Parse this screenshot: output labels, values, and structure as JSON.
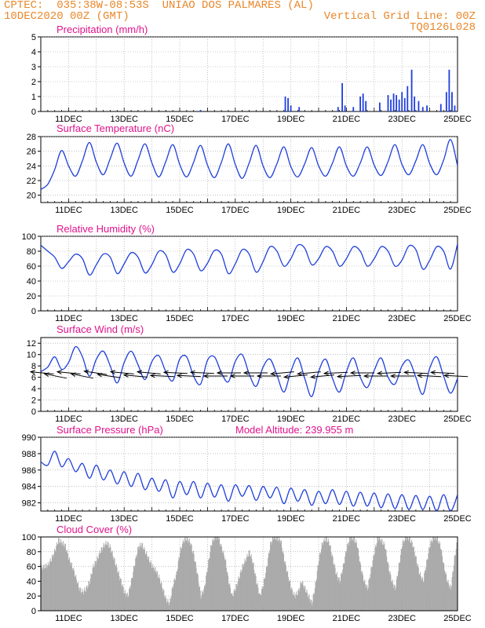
{
  "header": {
    "line1": "CPTEC:  035:38W-08:53S  UNIAO DOS PALMARES (AL)",
    "line2": "10DEC2020 00Z (GMT)",
    "grid_note": "Vertical Grid Line: 00Z",
    "run_id": "TQ0126L028"
  },
  "colors": {
    "header": "#e8872a",
    "title": "#e0148c",
    "line": "#1f3fdc",
    "cloud": "#a9a9a9",
    "grid": "#9a9a9a"
  },
  "chart_data": [
    {
      "id": "precip",
      "type": "bar",
      "title": "Precipitation (mm/h)",
      "ylim": [
        0,
        5
      ],
      "yticks": [
        0,
        1,
        2,
        3,
        4,
        5
      ],
      "xticks": [
        "11DEC",
        "13DEC",
        "15DEC",
        "17DEC",
        "19DEC",
        "21DEC",
        "23DEC",
        "25DEC"
      ],
      "x_unit": "day offset from 10DEC 00Z",
      "bars": [
        [
          15.75,
          0.1
        ],
        [
          18.8,
          1.0
        ],
        [
          18.9,
          0.9
        ],
        [
          19.0,
          0.4
        ],
        [
          19.3,
          0.3
        ],
        [
          20.7,
          0.3
        ],
        [
          20.85,
          1.9
        ],
        [
          20.95,
          0.4
        ],
        [
          21.25,
          0.3
        ],
        [
          21.5,
          1.0
        ],
        [
          21.6,
          1.2
        ],
        [
          21.7,
          0.7
        ],
        [
          22.2,
          0.6
        ],
        [
          22.5,
          1.1
        ],
        [
          22.6,
          0.8
        ],
        [
          22.7,
          1.2
        ],
        [
          22.8,
          1.1
        ],
        [
          22.9,
          0.8
        ],
        [
          23.0,
          1.3
        ],
        [
          23.1,
          0.9
        ],
        [
          23.2,
          1.7
        ],
        [
          23.35,
          2.8
        ],
        [
          23.45,
          1.0
        ],
        [
          23.6,
          0.7
        ],
        [
          23.75,
          0.3
        ],
        [
          23.9,
          0.4
        ],
        [
          24.4,
          0.5
        ],
        [
          24.6,
          1.3
        ],
        [
          24.7,
          2.8
        ],
        [
          24.8,
          1.3
        ],
        [
          24.9,
          0.4
        ]
      ]
    },
    {
      "id": "temp",
      "type": "line",
      "title": "Surface Temperature (nC)",
      "ylim": [
        19,
        28
      ],
      "yticks": [
        20,
        22,
        24,
        26,
        28
      ],
      "xticks": [
        "11DEC",
        "13DEC",
        "15DEC",
        "17DEC",
        "19DEC",
        "21DEC",
        "23DEC",
        "25DEC"
      ],
      "mean": 24.6,
      "amp": 2.3,
      "phase": 0.55,
      "trend": -0.03,
      "start": 20.8,
      "x": [
        10.0,
        10.25,
        10.5,
        10.75,
        11.0,
        11.25,
        11.5,
        11.75,
        12.0,
        12.25,
        12.5,
        12.75,
        13.0,
        13.25,
        13.5,
        13.75,
        14.0,
        14.25,
        14.5,
        14.75,
        15.0,
        15.25,
        15.5,
        15.75,
        16.0,
        16.25,
        16.5,
        16.75,
        17.0,
        17.25,
        17.5,
        17.75,
        18.0,
        18.25,
        18.5,
        18.75,
        19.0,
        19.25,
        19.5,
        19.75,
        20.0,
        20.25,
        20.5,
        20.75,
        21.0,
        21.25,
        21.5,
        21.75,
        22.0,
        22.25,
        22.5,
        22.75,
        23.0,
        23.25,
        23.5,
        23.75,
        24.0,
        24.25,
        24.5,
        24.75,
        25.0
      ],
      "y": [
        20.8,
        21.5,
        23.5,
        26.1,
        24.0,
        22.6,
        24.7,
        27.2,
        24.5,
        22.8,
        25.0,
        27.1,
        24.4,
        22.6,
        24.8,
        27.0,
        24.4,
        22.5,
        24.6,
        26.9,
        24.2,
        22.5,
        24.5,
        26.8,
        24.1,
        22.4,
        24.5,
        27.0,
        24.2,
        22.3,
        24.4,
        26.8,
        24.0,
        22.4,
        24.3,
        26.6,
        23.9,
        22.5,
        24.3,
        26.5,
        24.0,
        22.6,
        24.4,
        26.6,
        24.0,
        22.6,
        24.4,
        26.6,
        24.1,
        22.7,
        24.6,
        26.9,
        24.2,
        22.8,
        24.7,
        26.9,
        24.3,
        22.8,
        24.8,
        27.6,
        24.0
      ]
    },
    {
      "id": "rh",
      "type": "line",
      "title": "Relative Humidity (%)",
      "ylim": [
        0,
        100
      ],
      "yticks": [
        0,
        20,
        40,
        60,
        80,
        100
      ],
      "xticks": [
        "11DEC",
        "13DEC",
        "15DEC",
        "17DEC",
        "19DEC",
        "21DEC",
        "23DEC",
        "25DEC"
      ],
      "x": [
        10.0,
        10.25,
        10.5,
        10.75,
        11.0,
        11.25,
        11.5,
        11.75,
        12.0,
        12.25,
        12.5,
        12.75,
        13.0,
        13.25,
        13.5,
        13.75,
        14.0,
        14.25,
        14.5,
        14.75,
        15.0,
        15.25,
        15.5,
        15.75,
        16.0,
        16.25,
        16.5,
        16.75,
        17.0,
        17.25,
        17.5,
        17.75,
        18.0,
        18.25,
        18.5,
        18.75,
        19.0,
        19.25,
        19.5,
        19.75,
        20.0,
        20.25,
        20.5,
        20.75,
        21.0,
        21.25,
        21.5,
        21.75,
        22.0,
        22.25,
        22.5,
        22.75,
        23.0,
        23.25,
        23.5,
        23.75,
        24.0,
        24.25,
        24.5,
        24.75,
        25.0
      ],
      "y": [
        88,
        80,
        72,
        57,
        66,
        76,
        70,
        48,
        62,
        76,
        72,
        50,
        63,
        78,
        72,
        51,
        62,
        80,
        75,
        52,
        63,
        82,
        76,
        54,
        64,
        81,
        76,
        50,
        63,
        82,
        76,
        52,
        66,
        86,
        80,
        60,
        70,
        88,
        84,
        62,
        70,
        86,
        80,
        60,
        70,
        86,
        80,
        60,
        70,
        86,
        80,
        60,
        68,
        87,
        82,
        56,
        68,
        86,
        80,
        56,
        90
      ]
    },
    {
      "id": "wind",
      "type": "line",
      "title": "Surface Wind (m/s)",
      "ylim": [
        0,
        13
      ],
      "yticks": [
        0,
        2,
        4,
        6,
        8,
        10,
        12
      ],
      "xticks": [
        "11DEC",
        "13DEC",
        "15DEC",
        "17DEC",
        "19DEC",
        "21DEC",
        "23DEC",
        "25DEC"
      ],
      "x": [
        10.0,
        10.25,
        10.5,
        10.75,
        11.0,
        11.25,
        11.5,
        11.75,
        12.0,
        12.25,
        12.5,
        12.75,
        13.0,
        13.25,
        13.5,
        13.75,
        14.0,
        14.25,
        14.5,
        14.75,
        15.0,
        15.25,
        15.5,
        15.75,
        16.0,
        16.25,
        16.5,
        16.75,
        17.0,
        17.25,
        17.5,
        17.75,
        18.0,
        18.25,
        18.5,
        18.75,
        19.0,
        19.25,
        19.5,
        19.75,
        20.0,
        20.25,
        20.5,
        20.75,
        21.0,
        21.25,
        21.5,
        21.75,
        22.0,
        22.25,
        22.5,
        22.75,
        23.0,
        23.25,
        23.5,
        23.75,
        24.0,
        24.25,
        24.5,
        24.75,
        25.0
      ],
      "y": [
        7.0,
        7.8,
        9.6,
        7.4,
        8.6,
        11.4,
        9.6,
        6.2,
        9.2,
        10.6,
        8.0,
        5.0,
        8.6,
        10.6,
        8.2,
        5.6,
        8.8,
        9.8,
        7.0,
        5.4,
        9.2,
        9.6,
        6.2,
        4.8,
        9.0,
        9.6,
        6.8,
        5.2,
        8.8,
        10.0,
        6.6,
        4.4,
        7.8,
        9.2,
        6.4,
        3.4,
        7.0,
        9.4,
        5.8,
        2.6,
        7.0,
        9.2,
        5.8,
        3.4,
        7.0,
        9.4,
        6.0,
        4.2,
        7.2,
        9.4,
        6.0,
        4.8,
        8.0,
        9.0,
        6.0,
        3.0,
        7.6,
        9.6,
        6.2,
        3.2,
        5.8
      ],
      "arrows_from_deg": [
        100,
        110,
        100,
        110,
        105,
        105,
        100,
        100,
        100,
        95,
        95,
        95,
        95,
        90,
        90,
        90,
        90,
        90,
        80,
        80,
        80,
        80,
        85,
        85,
        90,
        90,
        85,
        90,
        95,
        95,
        95,
        95
      ],
      "arrows_speed": [
        6,
        7,
        7,
        7,
        7,
        6,
        6,
        6,
        7,
        6,
        6,
        6,
        6,
        6,
        6,
        6,
        6,
        6,
        6,
        6,
        6,
        6,
        6,
        6,
        6,
        6,
        6,
        6,
        6,
        6,
        6,
        6
      ]
    },
    {
      "id": "psfc",
      "type": "line",
      "title": "Surface Pressure (hPa)",
      "subtitle": "Model Altitude: 239.955 m",
      "ylim": [
        981,
        990
      ],
      "yticks": [
        982,
        984,
        986,
        988,
        990
      ],
      "xticks": [
        "11DEC",
        "13DEC",
        "15DEC",
        "17DEC",
        "19DEC",
        "21DEC",
        "23DEC",
        "25DEC"
      ],
      "x": [
        10.0,
        10.25,
        10.5,
        10.75,
        11.0,
        11.25,
        11.5,
        11.75,
        12.0,
        12.25,
        12.5,
        12.75,
        13.0,
        13.25,
        13.5,
        13.75,
        14.0,
        14.25,
        14.5,
        14.75,
        15.0,
        15.25,
        15.5,
        15.75,
        16.0,
        16.25,
        16.5,
        16.75,
        17.0,
        17.25,
        17.5,
        17.75,
        18.0,
        18.25,
        18.5,
        18.75,
        19.0,
        19.25,
        19.5,
        19.75,
        20.0,
        20.25,
        20.5,
        20.75,
        21.0,
        21.25,
        21.5,
        21.75,
        22.0,
        22.25,
        22.5,
        22.75,
        23.0,
        23.25,
        23.5,
        23.75,
        24.0,
        24.25,
        24.5,
        24.75,
        25.0
      ],
      "y": [
        987.0,
        986.6,
        988.3,
        986.4,
        987.4,
        985.8,
        986.8,
        985.0,
        986.6,
        984.8,
        986.0,
        984.3,
        985.8,
        984.0,
        985.6,
        983.6,
        985.0,
        983.4,
        984.8,
        982.6,
        984.6,
        983.0,
        984.6,
        982.6,
        984.4,
        982.7,
        984.2,
        982.2,
        984.2,
        982.8,
        984.1,
        982.3,
        984.0,
        982.6,
        983.9,
        981.9,
        983.8,
        982.2,
        983.6,
        981.7,
        983.4,
        981.9,
        983.6,
        981.8,
        983.4,
        981.6,
        983.3,
        981.6,
        983.2,
        981.4,
        983.1,
        981.3,
        983.0,
        981.2,
        982.9,
        981.2,
        982.8,
        981.0,
        983.0,
        981.0,
        983.0
      ]
    },
    {
      "id": "cloud",
      "type": "area",
      "title": "Cloud Cover (%)",
      "ylim": [
        0,
        100
      ],
      "yticks": [
        0,
        20,
        40,
        60,
        80,
        100
      ],
      "xticks": [
        "11DEC",
        "13DEC",
        "15DEC",
        "17DEC",
        "19DEC",
        "21DEC",
        "23DEC",
        "25DEC"
      ],
      "x": [
        10.0,
        10.125,
        10.25,
        10.375,
        10.5,
        10.625,
        10.75,
        10.875,
        11.0,
        11.125,
        11.25,
        11.375,
        11.5,
        11.625,
        11.75,
        11.875,
        12.0,
        12.125,
        12.25,
        12.375,
        12.5,
        12.625,
        12.75,
        12.875,
        13.0,
        13.125,
        13.25,
        13.375,
        13.5,
        13.625,
        13.75,
        13.875,
        14.0,
        14.125,
        14.25,
        14.375,
        14.5,
        14.625,
        14.75,
        14.875,
        15.0,
        15.125,
        15.25,
        15.375,
        15.5,
        15.625,
        15.75,
        15.875,
        16.0,
        16.125,
        16.25,
        16.375,
        16.5,
        16.625,
        16.75,
        16.875,
        17.0,
        17.125,
        17.25,
        17.375,
        17.5,
        17.625,
        17.75,
        17.875,
        18.0,
        18.125,
        18.25,
        18.375,
        18.5,
        18.625,
        18.75,
        18.875,
        19.0,
        19.125,
        19.25,
        19.375,
        19.5,
        19.625,
        19.75,
        19.875,
        20.0,
        20.125,
        20.25,
        20.375,
        20.5,
        20.625,
        20.75,
        20.875,
        21.0,
        21.125,
        21.25,
        21.375,
        21.5,
        21.625,
        21.75,
        21.875,
        22.0,
        22.125,
        22.25,
        22.375,
        22.5,
        22.625,
        22.75,
        22.875,
        23.0,
        23.125,
        23.25,
        23.375,
        23.5,
        23.625,
        23.75,
        23.875,
        24.0,
        24.125,
        24.25,
        24.375,
        24.5,
        24.625,
        24.75,
        24.875,
        25.0
      ],
      "y": [
        58,
        60,
        62,
        70,
        82,
        96,
        92,
        88,
        70,
        60,
        45,
        30,
        25,
        30,
        40,
        60,
        68,
        80,
        88,
        92,
        85,
        70,
        55,
        40,
        25,
        20,
        40,
        65,
        86,
        90,
        80,
        70,
        60,
        55,
        45,
        30,
        15,
        10,
        35,
        50,
        80,
        95,
        98,
        92,
        75,
        50,
        20,
        30,
        60,
        90,
        100,
        100,
        85,
        70,
        40,
        20,
        30,
        45,
        60,
        70,
        80,
        65,
        40,
        20,
        35,
        60,
        90,
        100,
        98,
        95,
        70,
        50,
        30,
        20,
        25,
        40,
        30,
        20,
        10,
        35,
        70,
        92,
        98,
        92,
        70,
        50,
        40,
        60,
        85,
        99,
        98,
        90,
        60,
        40,
        30,
        55,
        80,
        100,
        95,
        88,
        60,
        40,
        30,
        60,
        90,
        100,
        98,
        90,
        70,
        50,
        40,
        65,
        90,
        100,
        98,
        88,
        60,
        40,
        30,
        70,
        98
      ]
    }
  ]
}
